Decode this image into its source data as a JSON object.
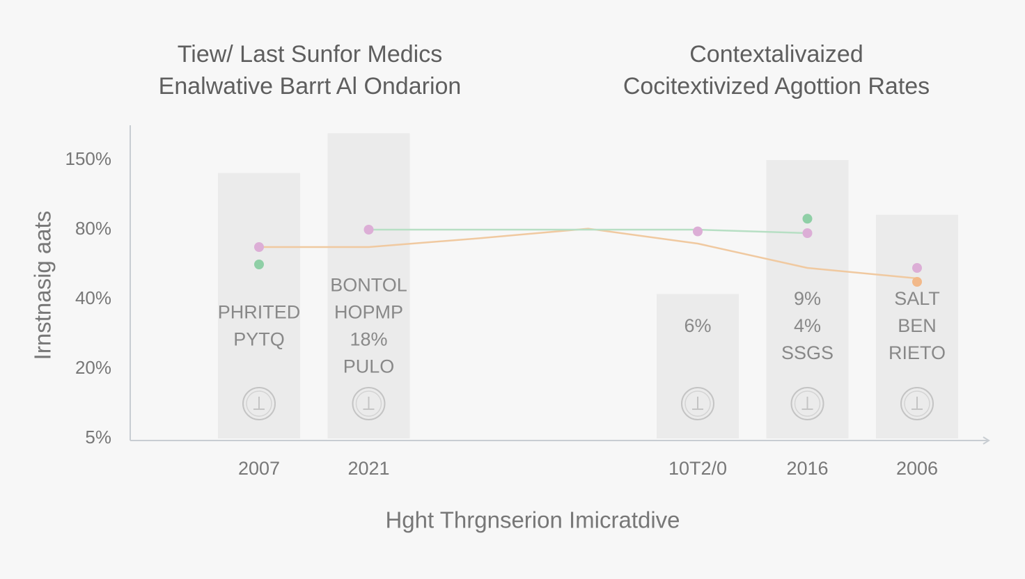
{
  "chart_data": {
    "type": "bar",
    "titles": [
      [
        "Tiew/ Last Sunfor Medics",
        "Enalwative Barrt Al Ondarion"
      ],
      [
        "Contextalivaized",
        "Cocitextivized Agottion Rates"
      ]
    ],
    "y_label": "Irnstnasig aats",
    "x_label": "Hght Thrgnserion Imicratdive",
    "categories": [
      "2007",
      "2021",
      null,
      null,
      "10T2/0",
      "2016",
      "2006"
    ],
    "values": [
      137,
      177,
      null,
      null,
      43,
      150,
      95
    ],
    "color": "#ebebeb",
    "bar_labels": [
      [
        "PHRITED",
        "PYTQ"
      ],
      [
        "BONTOL",
        "HOPMP",
        "18%",
        "PULO"
      ],
      null,
      null,
      [
        "6%"
      ],
      [
        "9%",
        "4%",
        "SSGS"
      ],
      [
        "SALT",
        "BEN",
        "RIETO"
      ]
    ],
    "series": [
      {
        "color": "#f0c9a0",
        "line": true,
        "markers": false,
        "values": [
          70,
          70,
          75,
          81,
          72,
          58,
          52
        ]
      },
      {
        "color": "#b7dfc4",
        "line": true,
        "markers": false,
        "values": [
          null,
          80,
          80,
          80,
          80,
          78,
          null
        ]
      },
      {
        "color": "#dcaed6",
        "line": false,
        "markers": true,
        "values": [
          70,
          80,
          null,
          null,
          79,
          78,
          58
        ]
      },
      {
        "color": "#8fcfa6",
        "line": false,
        "markers": true,
        "values": [
          60,
          null,
          null,
          null,
          null,
          91,
          null
        ]
      },
      {
        "color": "#f2b98a",
        "line": false,
        "markers": true,
        "values": [
          null,
          null,
          null,
          null,
          null,
          null,
          50
        ]
      }
    ],
    "ylim": [
      5,
      185
    ],
    "yticks": [
      {
        "value": 5,
        "label": "5%"
      },
      {
        "value": 20,
        "label": "20%"
      },
      {
        "value": 40,
        "label": "40%"
      },
      {
        "value": 80,
        "label": "80%"
      },
      {
        "value": 150,
        "label": "150%"
      }
    ],
    "grid": false
  }
}
